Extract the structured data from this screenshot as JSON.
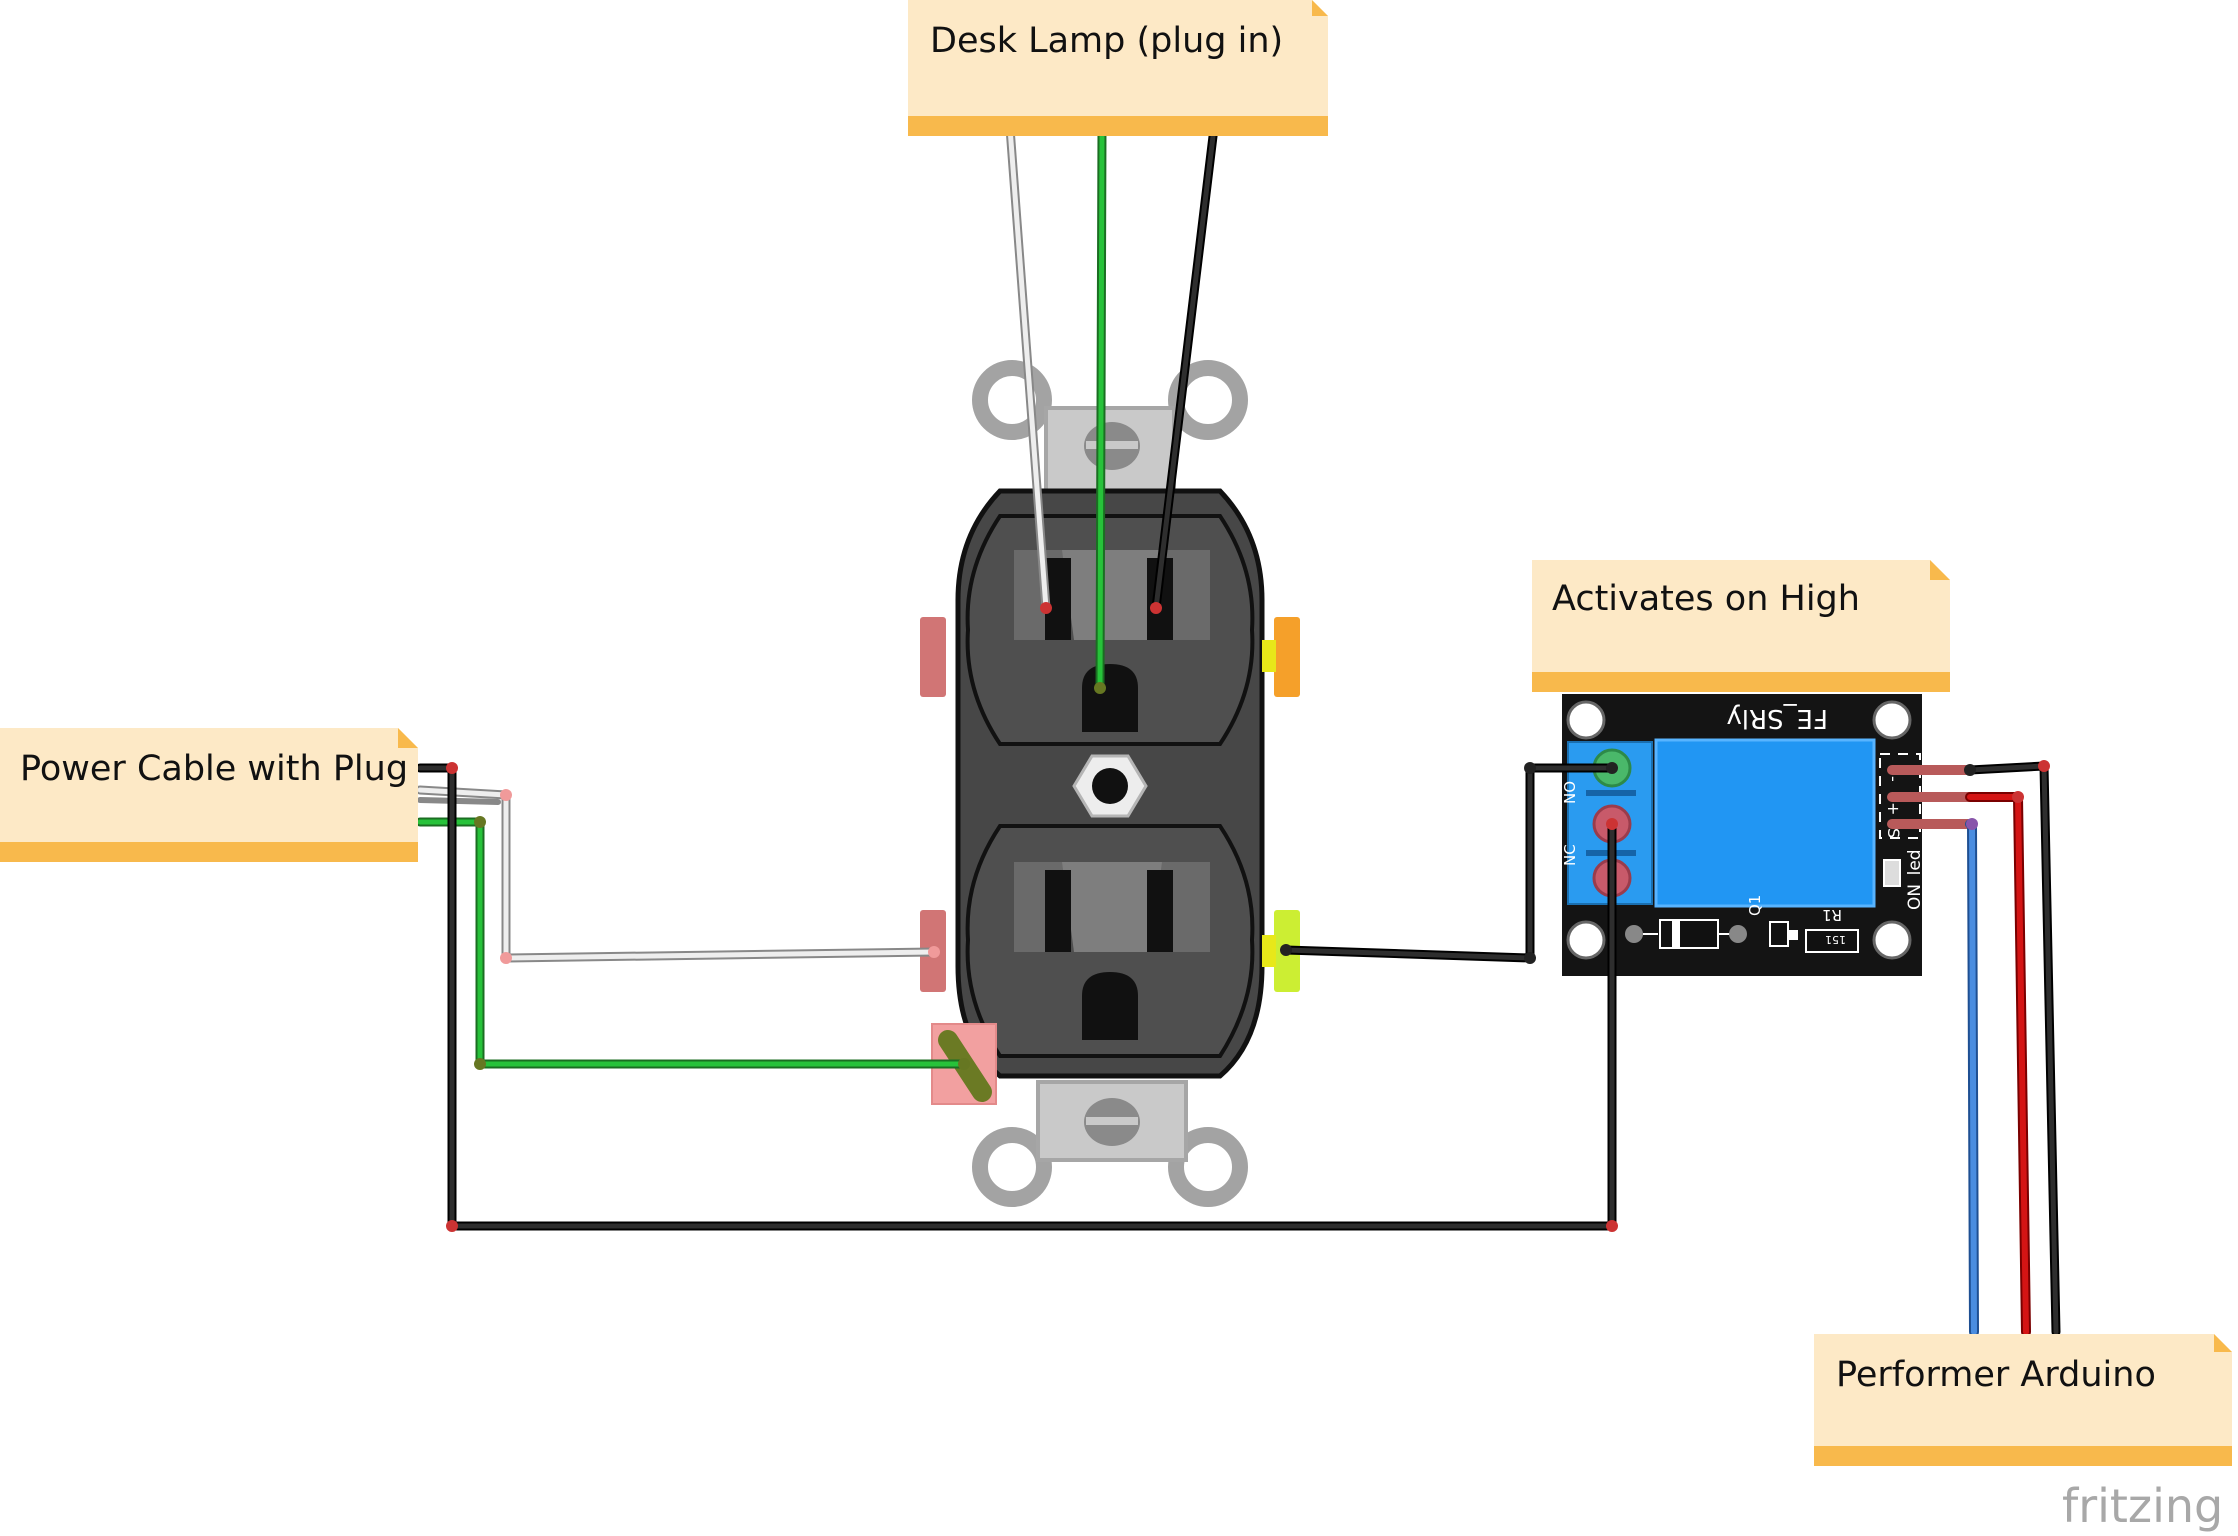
{
  "notes": {
    "lamp": "Desk Lamp (plug in)",
    "power": "Power Cable with Plug",
    "relay": "Activates on High",
    "arduino": "Performer Arduino"
  },
  "relay_board": {
    "name": "FE_SRly",
    "pin_no": "NO",
    "pin_nc": "NC",
    "led_label": "ON_led",
    "q1": "Q1",
    "r1": "R1",
    "r1_code": "151",
    "pins": [
      "-",
      "+",
      "S"
    ]
  },
  "brand": "fritzing",
  "colors": {
    "note_fill": "#fde9c6",
    "note_bar": "#f8b94c",
    "relay_blue": "#2196f3",
    "outlet_body": "#474747",
    "wire_green": "#22bb33",
    "wire_black": "#222222",
    "wire_red": "#cc1111",
    "wire_blue": "#3b7dd8",
    "wire_white": "#e8e8e8"
  }
}
